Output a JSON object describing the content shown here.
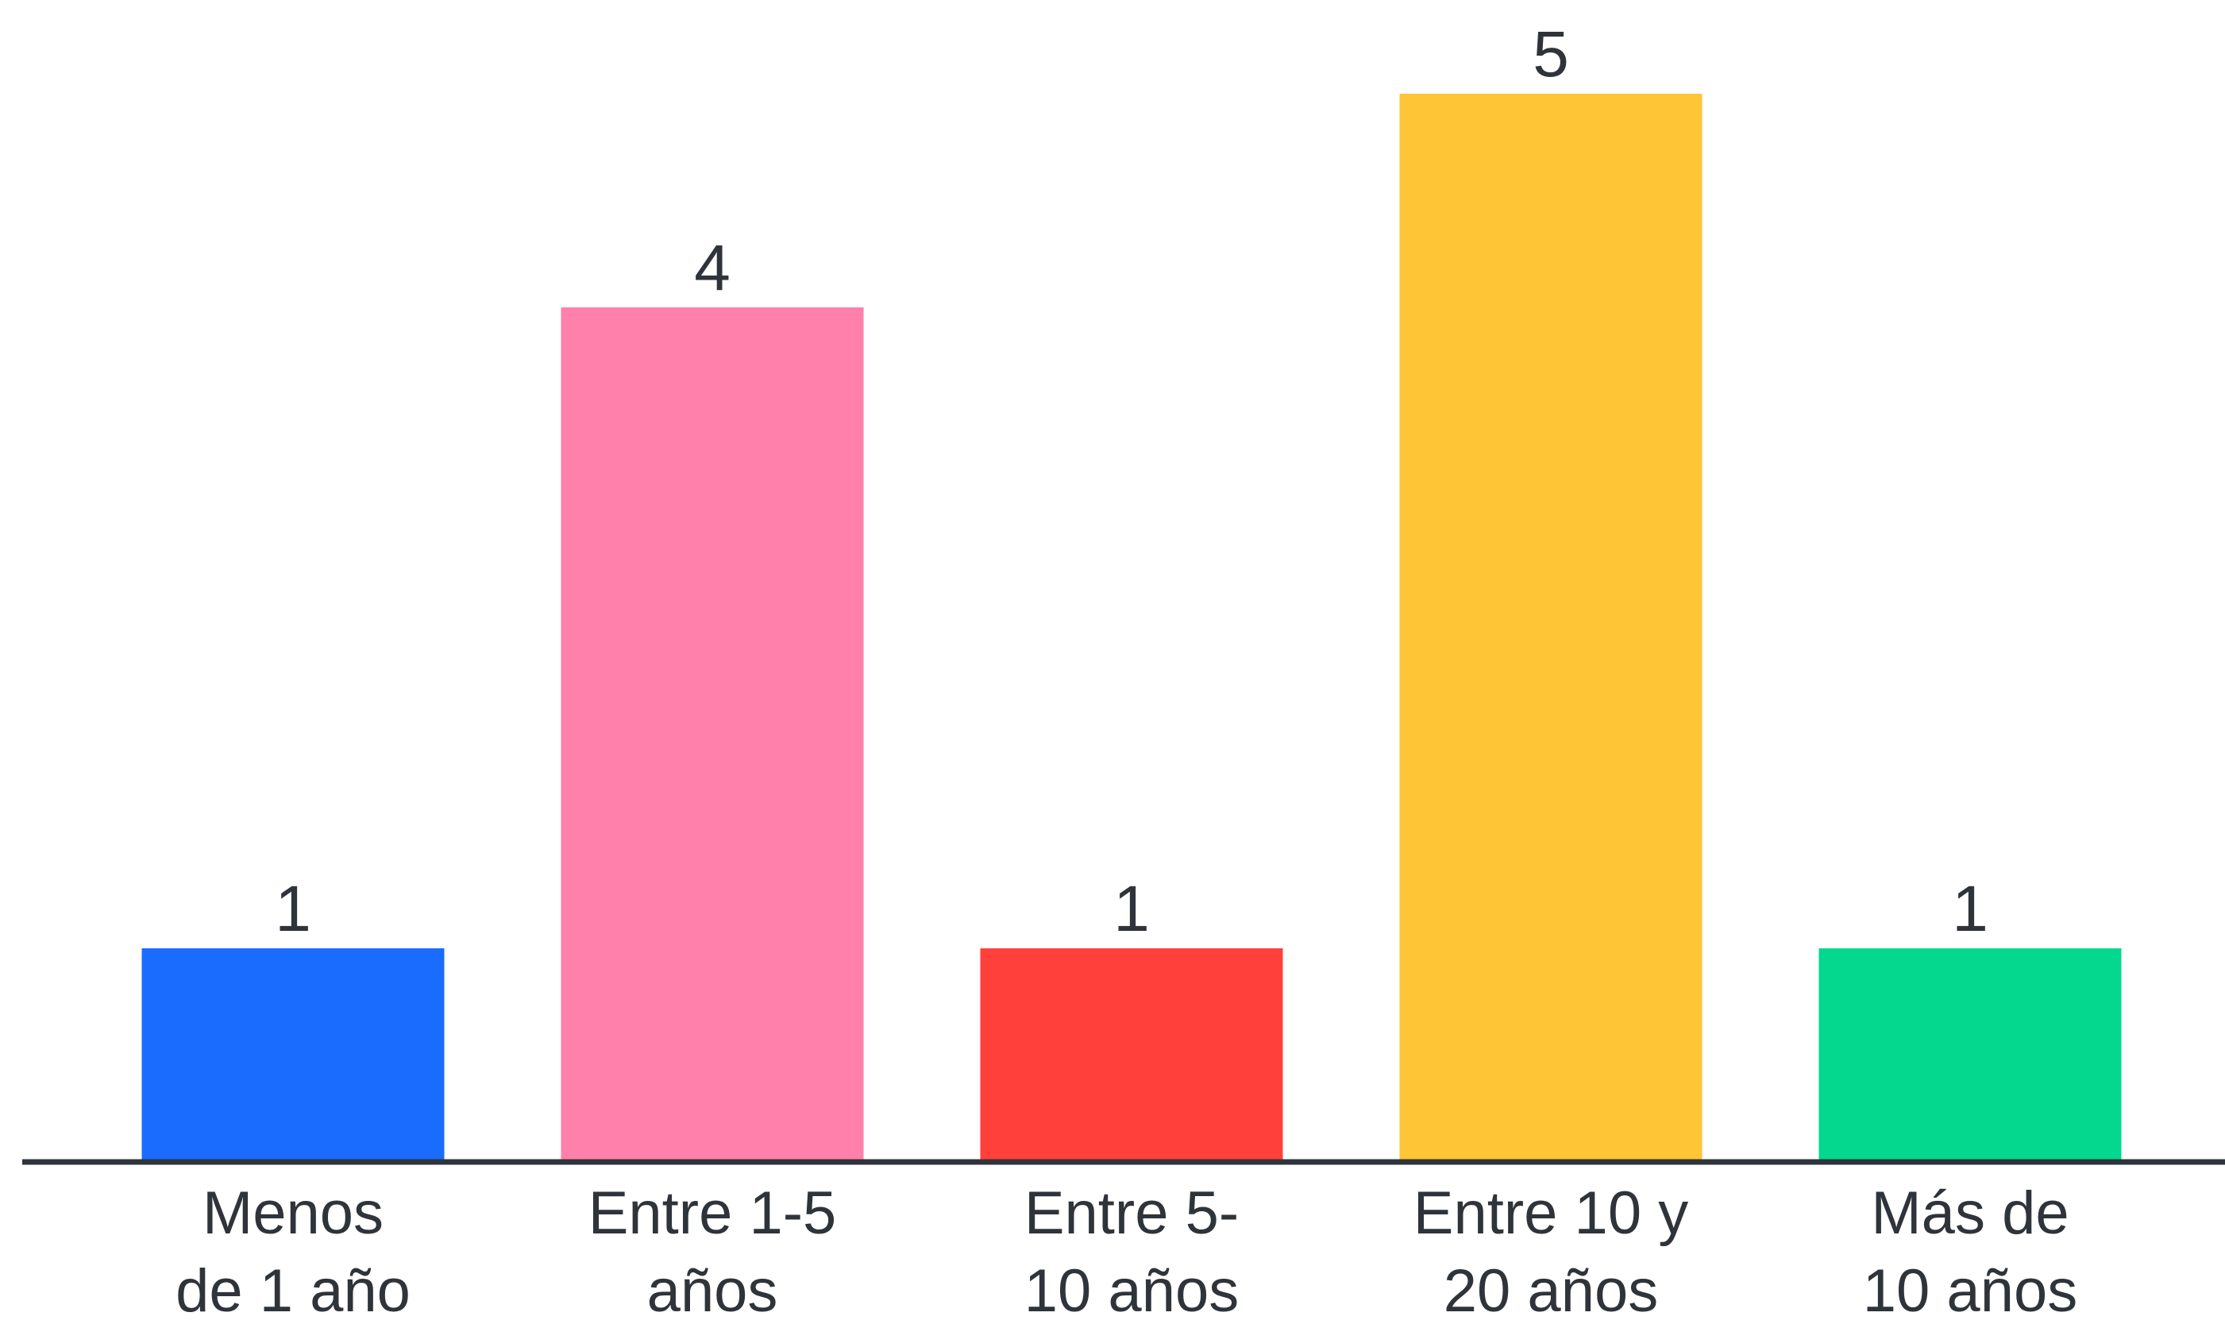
{
  "chart_data": {
    "type": "bar",
    "categories": [
      [
        "Menos",
        "de 1 año"
      ],
      [
        "Entre 1-5",
        "años"
      ],
      [
        "Entre 5-",
        "10 años"
      ],
      [
        "Entre 10 y",
        "20 años"
      ],
      [
        "Más de",
        "10 años"
      ]
    ],
    "values": [
      1,
      4,
      1,
      5,
      1
    ],
    "colors": [
      "#1a6cff",
      "#ff80aa",
      "#ff403b",
      "#fec536",
      "#04d88f"
    ],
    "ylim": [
      0,
      5
    ],
    "data_labels": true,
    "grid": false,
    "legend": "none",
    "axis_color": "#2f343b"
  }
}
